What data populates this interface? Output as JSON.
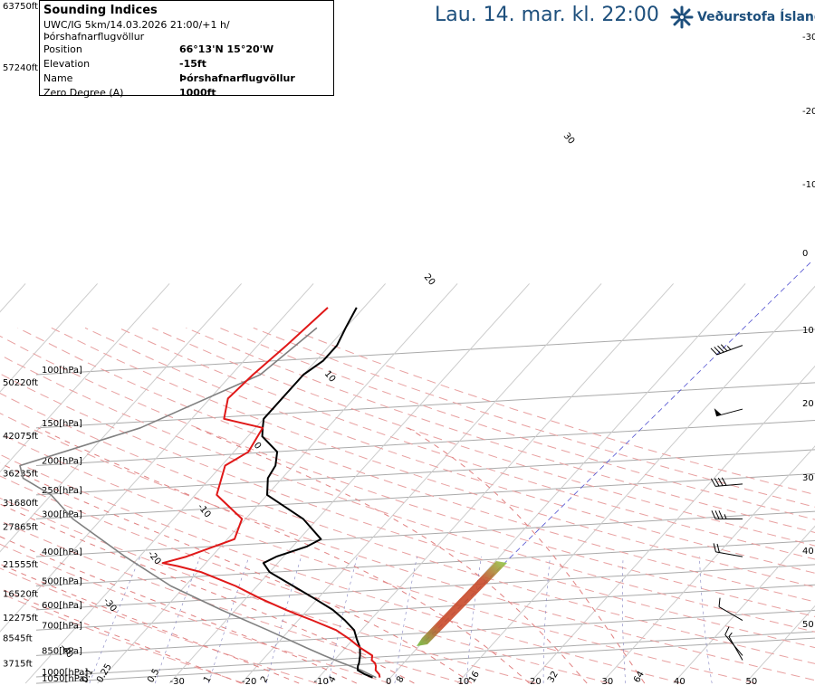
{
  "header": {
    "headline": "Lau. 14. mar. kl. 22:00",
    "brand": "Veðurstofa Íslands",
    "logo_icon": "snowflake-logo-icon"
  },
  "info": {
    "title": "Sounding Indices",
    "model_line": "UWC/IG 5km/14.03.2026 21:00/+1 h/Þórshafnarflugvöllur",
    "rows": [
      {
        "label": "Position",
        "value": "66°13'N 15°20'W"
      },
      {
        "label": "Elevation",
        "value": "-15ft"
      },
      {
        "label": "Name",
        "value": "Þórshafnarflugvöllur"
      },
      {
        "label": "Zero Degree (A)",
        "value": "1000ft"
      }
    ]
  },
  "chart_data": {
    "type": "line",
    "diagram": "skew-T log-p",
    "colors": {
      "temperature": "#e01818",
      "dewpoint": "#000000",
      "parcel": "#808080",
      "isobar": "#aaaaaa",
      "isotherm": "#cccccc",
      "dry_adiabat": "#e8a0a0",
      "moist_adiabat": "#e08080",
      "mixing_ratio": "#8080c0"
    },
    "pressure_levels": [
      {
        "p": 100,
        "label": "100[hPa]",
        "height": "50220ft"
      },
      {
        "p": 150,
        "label": "150[hPa]",
        "height": "42075ft"
      },
      {
        "p": 200,
        "label": "200[hPa]",
        "height": "36235ft"
      },
      {
        "p": 250,
        "label": "250[hPa]",
        "height": "31680ft"
      },
      {
        "p": 300,
        "label": "300[hPa]",
        "height": "27865ft"
      },
      {
        "p": 400,
        "label": "400[hPa]",
        "height": "21555ft"
      },
      {
        "p": 500,
        "label": "500[hPa]",
        "height": "16520ft"
      },
      {
        "p": 600,
        "label": "600[hPa]",
        "height": "12275ft"
      },
      {
        "p": 700,
        "label": "700[hPa]",
        "height": "8545ft"
      },
      {
        "p": 850,
        "label": "850[hPa]",
        "height": "3715ft"
      },
      {
        "p": 1000,
        "label": "1000[hPa]",
        "height": ""
      },
      {
        "p": 1050,
        "label": "1050[hPa]",
        "height": ""
      }
    ],
    "extra_heights": [
      "63750ft",
      "57240ft"
    ],
    "isotherm_labels": [
      "-30",
      "-20",
      "-10",
      "0",
      "10",
      "20",
      "30",
      "40",
      "50"
    ],
    "right_temp_labels": [
      "-30",
      "-20",
      "-10",
      "0",
      "10",
      "20",
      "30",
      "40",
      "50"
    ],
    "bottom_mixing_labels": [
      "0.1",
      "0.25",
      "0.5",
      "1",
      "2",
      "4",
      "8",
      "16",
      "32",
      "64"
    ],
    "diagonal_labels": [
      "30",
      "20",
      "10",
      "0",
      "-10",
      "-20",
      "-30",
      "-40"
    ],
    "temperature": [
      [
        1005,
        -1.5
      ],
      [
        980,
        -2.0
      ],
      [
        950,
        -3.0
      ],
      [
        920,
        -3.5
      ],
      [
        900,
        -4.0
      ],
      [
        880,
        -4.8
      ],
      [
        850,
        -5.3
      ],
      [
        800,
        -8.0
      ],
      [
        750,
        -10.5
      ],
      [
        700,
        -13.5
      ],
      [
        650,
        -18.0
      ],
      [
        620,
        -21.0
      ],
      [
        600,
        -23.0
      ],
      [
        550,
        -28.0
      ],
      [
        500,
        -33.0
      ],
      [
        450,
        -39.5
      ],
      [
        430,
        -43.5
      ],
      [
        420,
        -46.0
      ],
      [
        400,
        -43.5
      ],
      [
        350,
        -39.0
      ],
      [
        300,
        -40.5
      ],
      [
        250,
        -47.0
      ],
      [
        200,
        -49.5
      ],
      [
        180,
        -48.0
      ],
      [
        150,
        -49.0
      ],
      [
        140,
        -55.5
      ],
      [
        120,
        -57.5
      ],
      [
        100,
        -57.0
      ],
      [
        80,
        -56.0
      ],
      [
        60,
        -55.0
      ]
    ],
    "dewpoint": [
      [
        1005,
        -2.5
      ],
      [
        980,
        -4.0
      ],
      [
        950,
        -5.5
      ],
      [
        920,
        -6.0
      ],
      [
        900,
        -6.2
      ],
      [
        850,
        -7.0
      ],
      [
        800,
        -8.0
      ],
      [
        750,
        -9.5
      ],
      [
        700,
        -11.0
      ],
      [
        650,
        -13.5
      ],
      [
        600,
        -16.5
      ],
      [
        550,
        -20.5
      ],
      [
        500,
        -25.0
      ],
      [
        450,
        -30.0
      ],
      [
        420,
        -32.0
      ],
      [
        400,
        -31.0
      ],
      [
        370,
        -28.0
      ],
      [
        350,
        -27.0
      ],
      [
        300,
        -32.0
      ],
      [
        250,
        -40.0
      ],
      [
        220,
        -42.0
      ],
      [
        200,
        -42.5
      ],
      [
        180,
        -44.0
      ],
      [
        160,
        -48.0
      ],
      [
        150,
        -49.0
      ],
      [
        140,
        -50.0
      ],
      [
        120,
        -50.0
      ],
      [
        100,
        -50.0
      ],
      [
        90,
        -49.0
      ],
      [
        80,
        -49.0
      ],
      [
        70,
        -50.0
      ],
      [
        60,
        -51.0
      ]
    ],
    "parcel": [
      [
        1005,
        -2.0
      ],
      [
        950,
        -5.0
      ],
      [
        900,
        -8.5
      ],
      [
        850,
        -12.0
      ],
      [
        800,
        -15.5
      ],
      [
        700,
        -23.0
      ],
      [
        600,
        -32.0
      ],
      [
        500,
        -42.0
      ],
      [
        400,
        -52.0
      ],
      [
        300,
        -64.0
      ],
      [
        250,
        -70.0
      ],
      [
        220,
        -76.0
      ],
      [
        200,
        -78.0
      ],
      [
        150,
        -66.0
      ],
      [
        100,
        -56.0
      ],
      [
        70,
        -54.0
      ]
    ],
    "winds": [
      {
        "p": 80,
        "dir": 250,
        "speed": 45
      },
      {
        "p": 130,
        "dir": 255,
        "speed": 50
      },
      {
        "p": 230,
        "dir": 265,
        "speed": 40
      },
      {
        "p": 300,
        "dir": 270,
        "speed": 35
      },
      {
        "p": 400,
        "dir": 280,
        "speed": 20
      },
      {
        "p": 650,
        "dir": 300,
        "speed": 10
      },
      {
        "p": 850,
        "dir": 320,
        "speed": 10
      },
      {
        "p": 880,
        "dir": 330,
        "speed": 5
      }
    ]
  }
}
